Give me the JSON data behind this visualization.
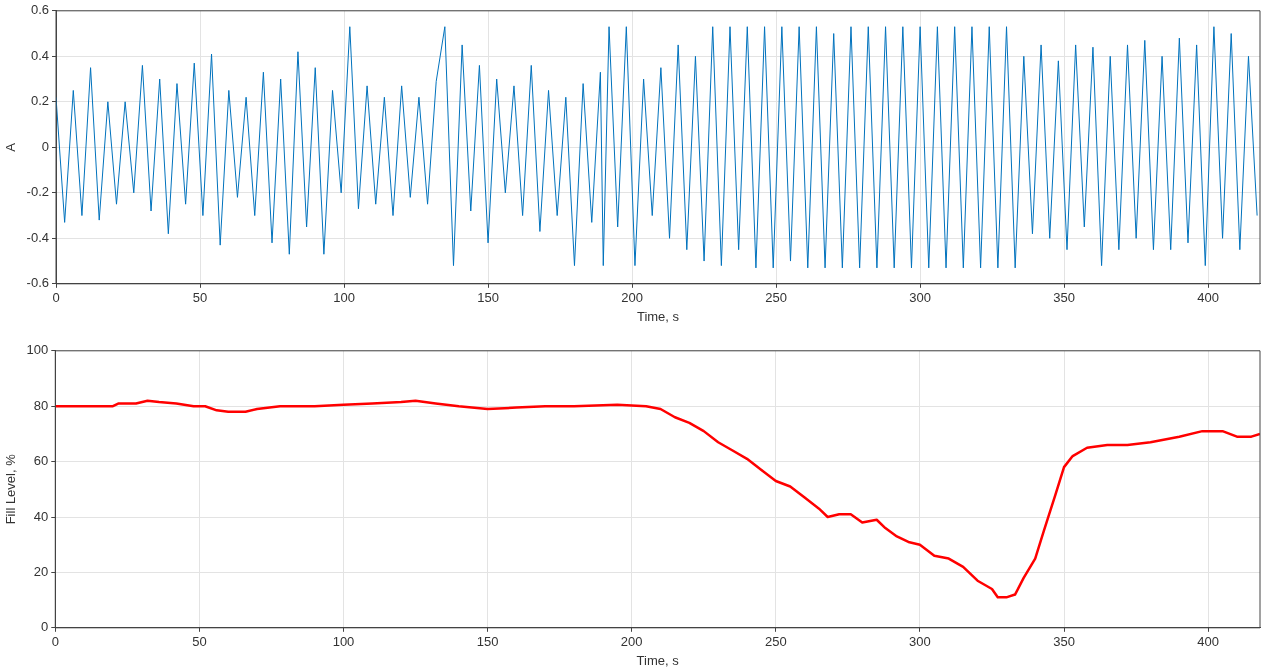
{
  "chart_data": [
    {
      "type": "line",
      "xlabel": "Time, s",
      "ylabel": "A",
      "color": "#0072bd",
      "xlim": [
        0,
        418
      ],
      "ylim": [
        -0.6,
        0.6
      ],
      "xticks": [
        0,
        50,
        100,
        150,
        200,
        250,
        300,
        350,
        400
      ],
      "yticks": [
        -0.6,
        -0.4,
        -0.2,
        0,
        0.2,
        0.4,
        0.6
      ],
      "grid": true,
      "x": [
        0,
        3,
        6,
        9,
        12,
        15,
        18,
        21,
        24,
        27,
        30,
        33,
        36,
        39,
        42,
        45,
        48,
        51,
        54,
        57,
        60,
        63,
        66,
        69,
        72,
        75,
        78,
        81,
        84,
        87,
        90,
        93,
        96,
        99,
        102,
        105,
        108,
        111,
        114,
        117,
        120,
        123,
        126,
        129,
        132,
        135,
        138,
        141,
        144,
        147,
        150,
        153,
        156,
        159,
        162,
        165,
        168,
        171,
        174,
        177,
        180,
        183,
        186,
        189,
        190,
        192,
        195,
        198,
        201,
        204,
        207,
        210,
        213,
        216,
        219,
        222,
        225,
        228,
        231,
        234,
        237,
        240,
        243,
        246,
        249,
        252,
        255,
        258,
        261,
        264,
        267,
        270,
        273,
        276,
        279,
        282,
        285,
        288,
        291,
        294,
        297,
        300,
        303,
        306,
        309,
        312,
        315,
        318,
        321,
        324,
        327,
        330,
        333,
        336,
        339,
        342,
        345,
        348,
        351,
        354,
        357,
        360,
        363,
        366,
        369,
        372,
        375,
        378,
        381,
        384,
        387,
        390,
        393,
        396,
        399,
        402,
        405,
        408,
        411,
        414,
        417
      ],
      "values": [
        0.22,
        -0.33,
        0.25,
        -0.3,
        0.35,
        -0.32,
        0.2,
        -0.25,
        0.2,
        -0.2,
        0.36,
        -0.28,
        0.3,
        -0.38,
        0.28,
        -0.25,
        0.37,
        -0.3,
        0.41,
        -0.43,
        0.25,
        -0.22,
        0.22,
        -0.3,
        0.33,
        -0.42,
        0.3,
        -0.47,
        0.42,
        -0.35,
        0.35,
        -0.47,
        0.25,
        -0.2,
        0.53,
        -0.27,
        0.27,
        -0.25,
        0.22,
        -0.3,
        0.27,
        -0.22,
        0.22,
        -0.25,
        0.29,
        0.53,
        -0.52,
        0.45,
        -0.28,
        0.36,
        -0.42,
        0.3,
        -0.2,
        0.27,
        -0.3,
        0.36,
        -0.37,
        0.25,
        -0.3,
        0.22,
        -0.52,
        0.28,
        -0.33,
        0.33,
        -0.52,
        0.53,
        -0.35,
        0.53,
        -0.52,
        0.3,
        -0.3,
        0.35,
        -0.4,
        0.45,
        -0.45,
        0.4,
        -0.5,
        0.53,
        -0.52,
        0.53,
        -0.45,
        0.53,
        -0.53,
        0.53,
        -0.53,
        0.53,
        -0.5,
        0.53,
        -0.53,
        0.53,
        -0.53,
        0.5,
        -0.53,
        0.53,
        -0.53,
        0.53,
        -0.53,
        0.53,
        -0.53,
        0.53,
        -0.53,
        0.53,
        -0.53,
        0.53,
        -0.53,
        0.53,
        -0.53,
        0.53,
        -0.53,
        0.53,
        -0.53,
        0.53,
        -0.53,
        0.4,
        -0.38,
        0.45,
        -0.4,
        0.38,
        -0.45,
        0.45,
        -0.35,
        0.44,
        -0.52,
        0.4,
        -0.45,
        0.45,
        -0.4,
        0.47,
        -0.45,
        0.4,
        -0.45,
        0.48,
        -0.42,
        0.45,
        -0.52,
        0.53,
        -0.4,
        0.5,
        -0.45,
        0.4,
        -0.3
      ]
    },
    {
      "type": "line",
      "xlabel": "Time, s",
      "ylabel": "Fill Level, %",
      "color": "#ff0000",
      "xlim": [
        0,
        418
      ],
      "ylim": [
        0,
        100
      ],
      "xticks": [
        0,
        50,
        100,
        150,
        200,
        250,
        300,
        350,
        400
      ],
      "yticks": [
        0,
        20,
        40,
        60,
        80,
        100
      ],
      "grid": true,
      "x": [
        0,
        20,
        22,
        28,
        32,
        36,
        42,
        48,
        52,
        56,
        60,
        66,
        70,
        78,
        90,
        100,
        110,
        120,
        125,
        132,
        140,
        150,
        160,
        170,
        180,
        195,
        205,
        210,
        215,
        220,
        225,
        230,
        235,
        240,
        245,
        250,
        255,
        260,
        265,
        268,
        272,
        276,
        280,
        285,
        288,
        292,
        296,
        300,
        305,
        310,
        315,
        320,
        325,
        327,
        330,
        333,
        336,
        340,
        343,
        347,
        350,
        353,
        358,
        365,
        372,
        380,
        390,
        398,
        405,
        410,
        415,
        418
      ],
      "values": [
        80,
        80,
        81,
        81,
        82,
        81.5,
        81,
        80,
        80,
        78.5,
        78,
        78,
        79,
        80,
        80,
        80.5,
        81,
        81.5,
        82,
        81,
        80,
        79,
        79.5,
        80,
        80,
        80.5,
        80,
        79,
        76,
        74,
        71,
        67,
        64,
        61,
        57,
        53,
        51,
        47,
        43,
        40,
        41,
        41,
        38,
        39,
        36,
        33,
        31,
        30,
        26,
        25,
        22,
        17,
        14,
        11,
        11,
        12,
        18,
        25,
        35,
        48,
        58,
        62,
        65,
        66,
        66,
        67,
        69,
        71,
        71,
        69,
        69,
        70
      ]
    }
  ]
}
